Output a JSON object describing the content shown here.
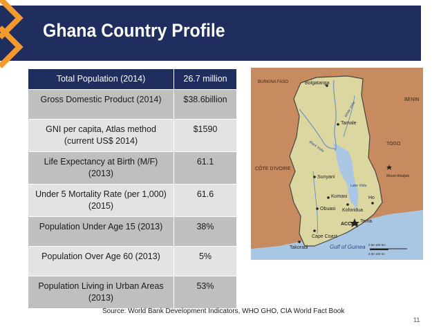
{
  "slide": {
    "title": "Ghana Country Profile",
    "source": "Source: World Bank Development Indicators, WHO GHO, CIA World Fact Book",
    "page_number": "11"
  },
  "table": {
    "header": {
      "label": "Total Population (2014)",
      "value": "26.7 million"
    },
    "rows": [
      {
        "label": "Gross Domestic Product (2014)",
        "value": "$38.6billion"
      },
      {
        "label": "GNI per capita, Atlas method (current US$ 2014)",
        "value": "$1590"
      },
      {
        "label": "Life Expectancy at Birth (M/F) (2013)",
        "value": "61.1"
      },
      {
        "label": "Under 5 Mortality Rate (per 1,000) (2015)",
        "value": "61.6"
      },
      {
        "label": "Population Under Age 15 (2013)",
        "value": "38%"
      },
      {
        "label": "Population Over Age 60 (2013)",
        "value": "5%"
      },
      {
        "label": "Population Living in Urban Areas (2013)",
        "value": "53%"
      }
    ]
  },
  "map": {
    "countries": [
      "BURKINA FASO",
      "BENIN",
      "TOGO",
      "CÔTE D'IVOIRE"
    ],
    "cities": [
      "Bolgatanga",
      "Tamale",
      "Sunyani",
      "Kumasi",
      "Koforidua",
      "Obuasi",
      "Ho",
      "ACCRA",
      "Cape Coast",
      "Takoradi",
      "Tema"
    ],
    "features": [
      "White Volta",
      "Black Volta",
      "Lake Volta",
      "Mount Afadjato",
      "Gulf of Guinea"
    ],
    "scale": {
      "km": "0  50  100 km",
      "mi": "0  50  100 mi"
    },
    "colors": {
      "land": "#dcd6a0",
      "neighbors": "#c88a5f",
      "water": "#a9c7e3",
      "rivers": "#6b93c4",
      "borders": "#444444"
    }
  }
}
